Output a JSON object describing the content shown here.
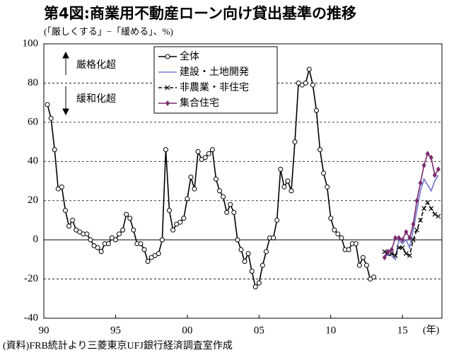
{
  "chart_data": {
    "type": "line",
    "title": "第4図:商業用不動産ローン向け貸出基準の推移",
    "subtitle": "(「厳しくする」−「緩める」、%)",
    "source": "(資料)FRB統計より三菱東京UFJ銀行経済調査室作成",
    "x_unit": "(年)",
    "annotations": [
      "厳格化超",
      "緩和化超"
    ],
    "xlim": [
      1990,
      2017.75
    ],
    "xticks": [
      {
        "value": 1990,
        "label": "90"
      },
      {
        "value": 1995,
        "label": "95"
      },
      {
        "value": 2000,
        "label": "00"
      },
      {
        "value": 2005,
        "label": "05"
      },
      {
        "value": 2010,
        "label": "10"
      },
      {
        "value": 2015,
        "label": "15"
      }
    ],
    "ylim": [
      -40,
      100
    ],
    "yticks": [
      -40,
      -20,
      0,
      20,
      40,
      60,
      80,
      100
    ],
    "grid": true,
    "legend": "upper-center",
    "series": [
      {
        "name": "全体",
        "color": "#000000",
        "marker": "circle",
        "dashed": false,
        "x": [
          1990.25,
          1990.5,
          1990.75,
          1991,
          1991.25,
          1991.5,
          1991.75,
          1992,
          1992.25,
          1992.5,
          1992.75,
          1993,
          1993.25,
          1993.5,
          1993.75,
          1994,
          1994.25,
          1994.5,
          1994.75,
          1995,
          1995.25,
          1995.5,
          1995.75,
          1996,
          1996.25,
          1996.5,
          1996.75,
          1997,
          1997.25,
          1997.5,
          1997.75,
          1998,
          1998.25,
          1998.5,
          1998.75,
          1999,
          1999.25,
          1999.5,
          1999.75,
          2000,
          2000.25,
          2000.5,
          2000.75,
          2001,
          2001.25,
          2001.5,
          2001.75,
          2002,
          2002.25,
          2002.5,
          2002.75,
          2003,
          2003.25,
          2003.5,
          2003.75,
          2004,
          2004.25,
          2004.5,
          2004.75,
          2005,
          2005.25,
          2005.5,
          2005.75,
          2006,
          2006.25,
          2006.5,
          2006.75,
          2007,
          2007.25,
          2007.5,
          2007.75,
          2008,
          2008.25,
          2008.5,
          2008.75,
          2009,
          2009.25,
          2009.5,
          2009.75,
          2010,
          2010.25,
          2010.5,
          2010.75,
          2011,
          2011.25,
          2011.5,
          2011.75,
          2012,
          2012.25,
          2012.5,
          2012.75,
          2013
        ],
        "values": [
          69,
          62,
          46,
          26,
          27,
          15,
          7,
          10,
          5,
          4,
          3,
          3,
          0,
          -3,
          -4,
          -6,
          -2,
          -2,
          1,
          0,
          3,
          5,
          13,
          11,
          5,
          -2,
          -2,
          -5,
          -11,
          -9,
          -8,
          -7,
          0,
          46,
          15,
          5,
          8,
          9,
          11,
          21,
          32,
          26,
          45,
          41,
          42,
          44,
          46,
          31,
          25,
          22,
          14,
          18,
          14,
          0,
          -5,
          -11,
          -7,
          -16,
          -24,
          -22,
          -13,
          -6,
          1,
          1,
          10,
          36,
          27,
          30,
          25,
          50,
          80,
          79,
          80,
          87,
          79,
          66,
          46,
          34,
          27,
          11,
          5,
          3,
          1,
          -5,
          -5,
          -2,
          -2,
          -13,
          -9,
          -13,
          -20,
          -19
        ]
      },
      {
        "name": "建設・土地開発",
        "color": "#7b7fd0",
        "marker": "none",
        "dashed": false,
        "x": [
          2013.75,
          2014,
          2014.25,
          2014.5,
          2014.75,
          2015,
          2015.25,
          2015.5,
          2015.75,
          2016,
          2016.25,
          2016.5,
          2016.75,
          2017,
          2017.25,
          2017.5
        ],
        "values": [
          -7,
          -8,
          -8,
          -10,
          0,
          -2,
          0,
          -4,
          5,
          15,
          25,
          31,
          28,
          25,
          30,
          33
        ]
      },
      {
        "name": "非農業・非住宅",
        "color": "#000000",
        "marker": "x",
        "dashed": true,
        "x": [
          2013.75,
          2014,
          2014.25,
          2014.5,
          2014.75,
          2015,
          2015.25,
          2015.5,
          2015.75,
          2016,
          2016.25,
          2016.5,
          2016.75,
          2017,
          2017.25,
          2017.5
        ],
        "values": [
          -6,
          -7,
          -7,
          -8,
          -4,
          -4,
          -7,
          -8,
          0,
          5,
          10,
          16,
          19,
          16,
          13,
          12
        ]
      },
      {
        "name": "集合住宅",
        "color": "#7a2a6e",
        "marker": "diamond",
        "dashed": false,
        "x": [
          2013.75,
          2014,
          2014.25,
          2014.5,
          2014.75,
          2015,
          2015.25,
          2015.5,
          2015.75,
          2016,
          2016.25,
          2016.5,
          2016.75,
          2017,
          2017.25,
          2017.5
        ],
        "values": [
          -9,
          -6,
          -5,
          1,
          1,
          0,
          4,
          1,
          8,
          20,
          29,
          38,
          44,
          42,
          33,
          36
        ]
      }
    ]
  }
}
